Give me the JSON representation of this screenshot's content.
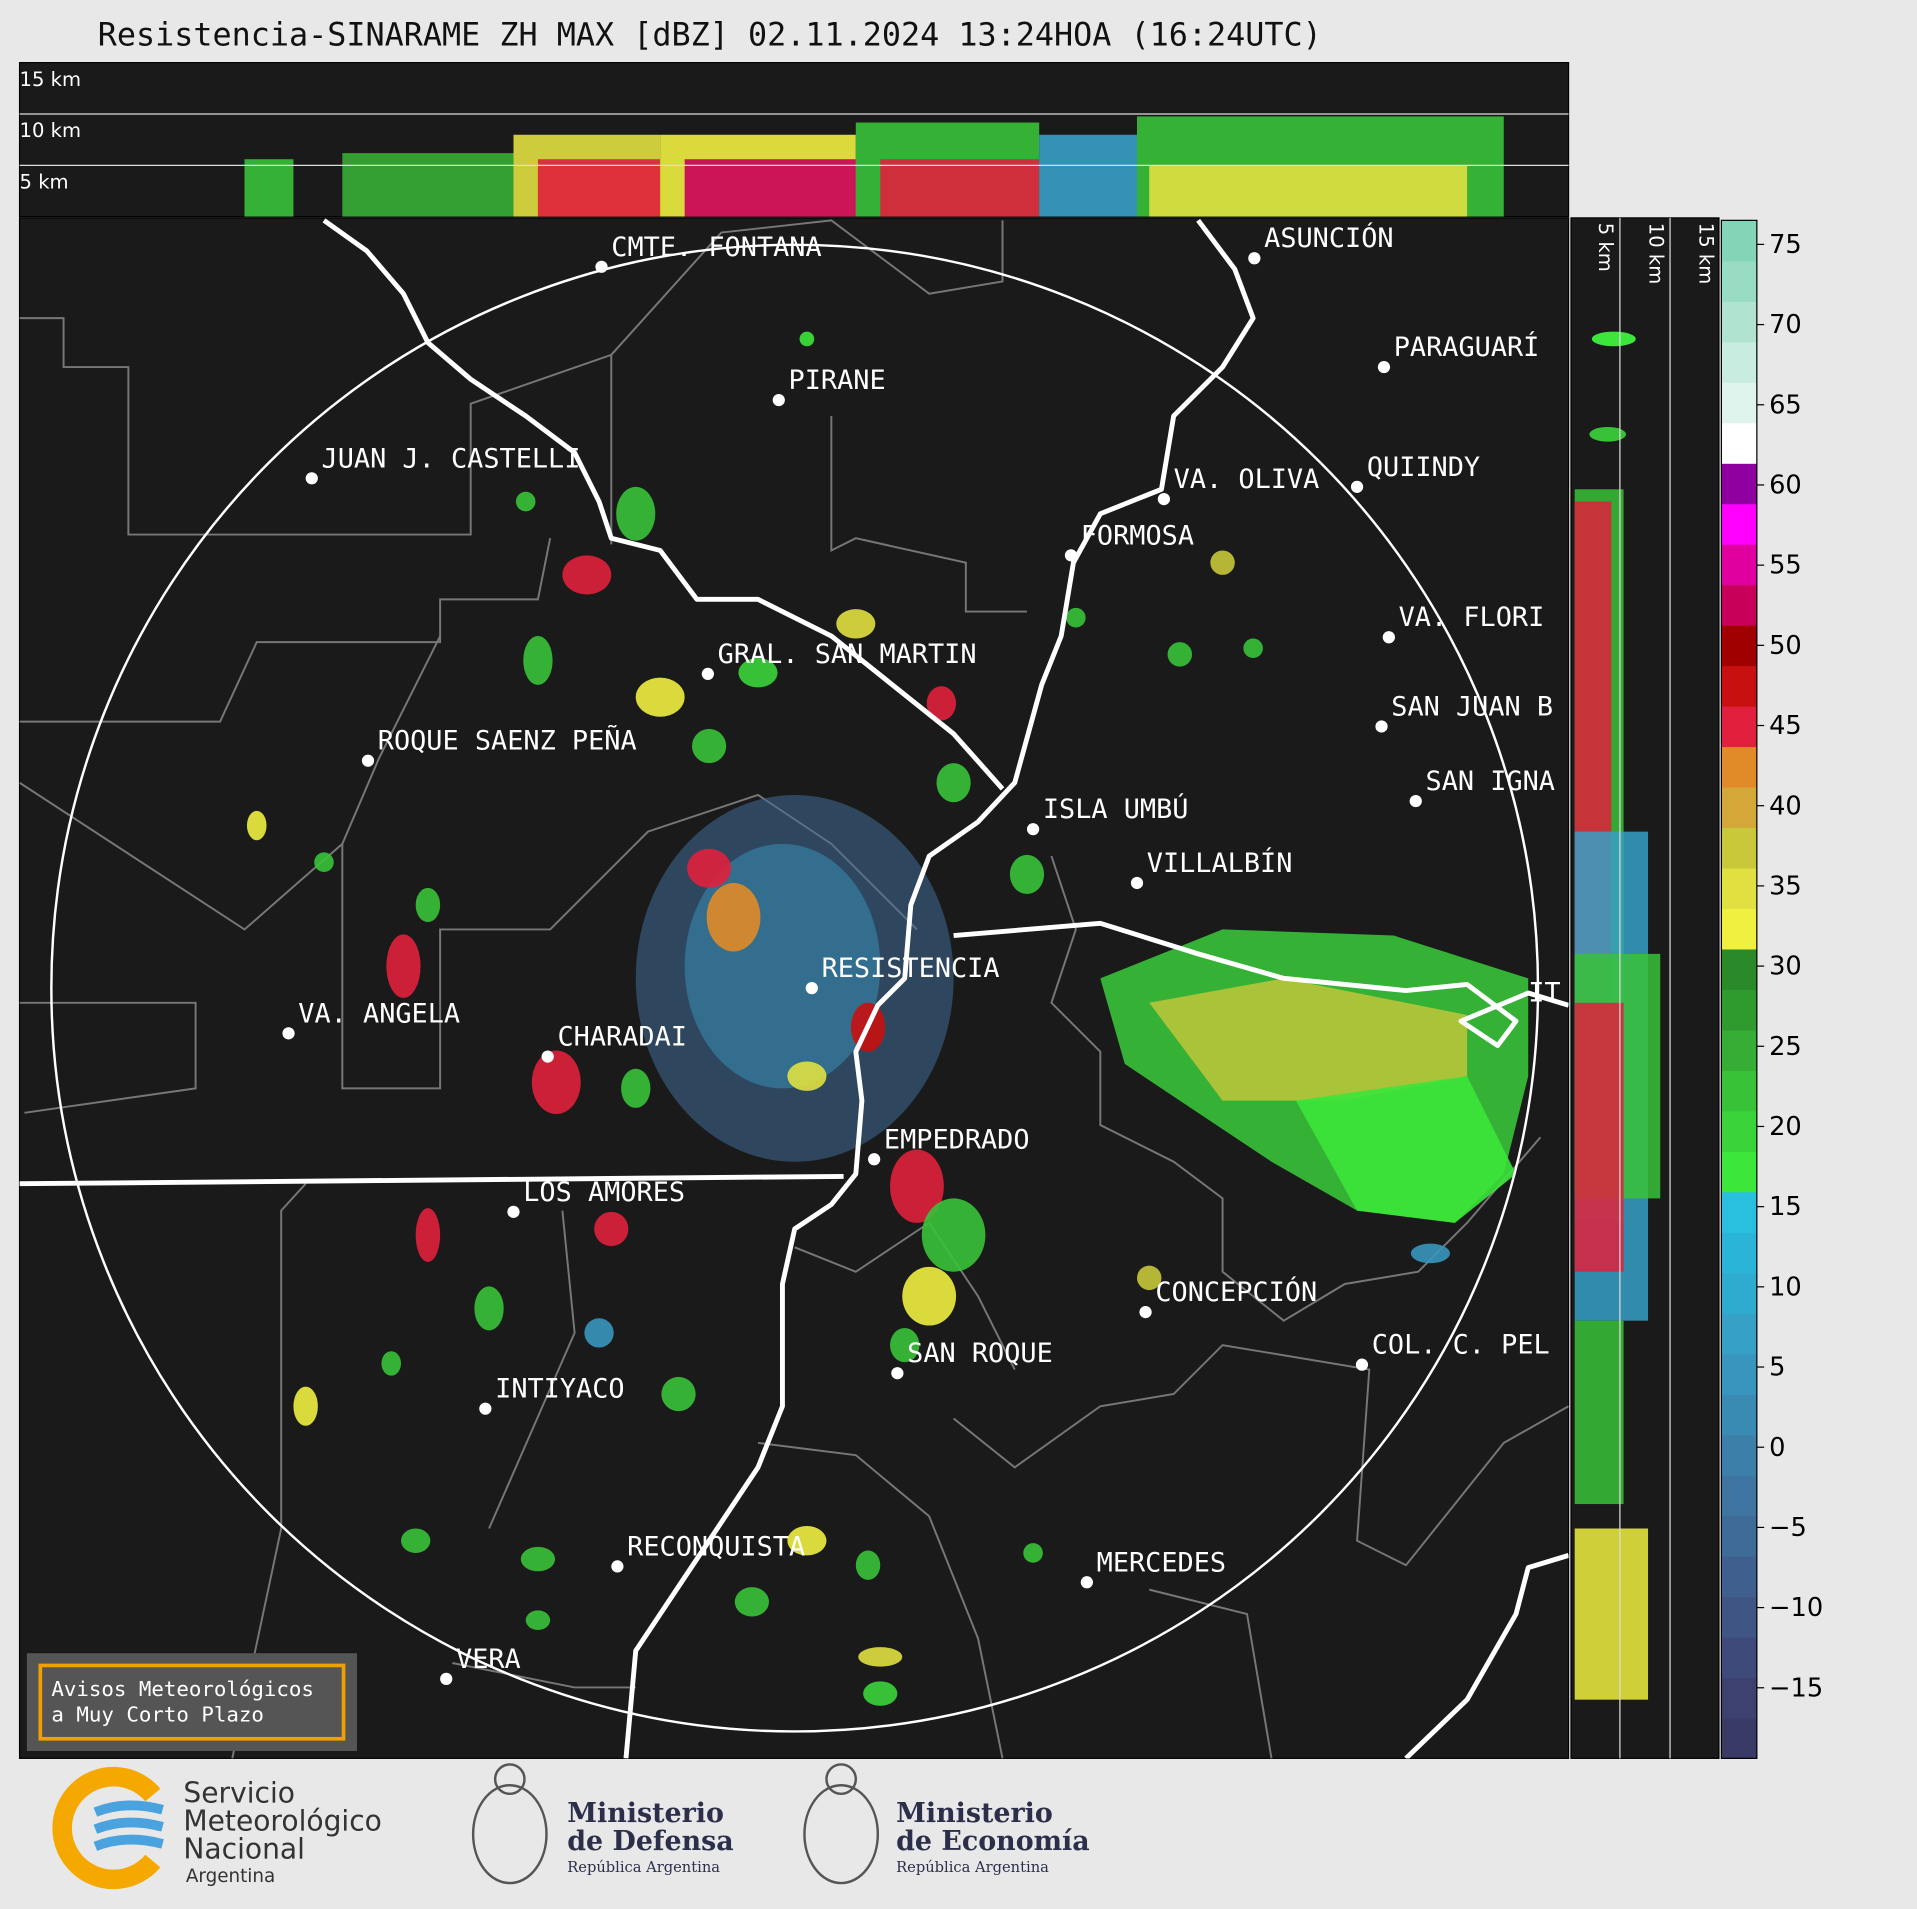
{
  "title": "Resistencia-SINARAME ZH MAX [dBZ] 02.11.2024 13:24HOA (16:24UTC)",
  "profile_top": {
    "labels": [
      "15 km",
      "10 km",
      "5 km"
    ]
  },
  "profile_side": {
    "labels": [
      "5 km",
      "10 km",
      "15 km"
    ]
  },
  "map": {
    "places": [
      "CMTE. FONTANA",
      "PIRANE",
      "JUAN J. CASTELLI",
      "ASUNCIÓN",
      "PARAGUARÍ",
      "VA. OLIVA",
      "QUIINDY",
      "FORMOSA",
      "VA. FLORI",
      "GRAL. SAN MARTIN",
      "SAN JUAN B",
      "ROQUE SAENZ PEÑA",
      "SAN IGNA",
      "ISLA UMBÚ",
      "VILLALBÍN",
      "RESISTENCIA",
      "VA. ANGELA",
      "CHARADAI",
      "IT",
      "EMPEDRADO",
      "LOS AMORES",
      "CONCEPCIÓN",
      "COL. C. PEL",
      "SAN ROQUE",
      "INTIYACO",
      "RECONQUISTA",
      "MERCEDES",
      "VERA"
    ]
  },
  "colorbar": {
    "lim": [
      -19.4,
      76.5
    ],
    "ticks": [
      75,
      70,
      65,
      60,
      55,
      50,
      45,
      40,
      35,
      30,
      25,
      20,
      15,
      10,
      5,
      0,
      {
        "value": -5,
        "label": "−5"
      },
      {
        "value": -10,
        "label": "−10"
      },
      {
        "value": -15,
        "label": "−15"
      }
    ],
    "colors": [
      "#3a3a66",
      "#3c4170",
      "#3e4a7a",
      "#3f5584",
      "#3f608e",
      "#3f6b98",
      "#3e75a0",
      "#3c80aa",
      "#3a8bb4",
      "#3896be",
      "#36a0c6",
      "#2fabd0",
      "#2ab5d8",
      "#29c0e0",
      "#3ce63a",
      "#3ad43a",
      "#38c238",
      "#36ad34",
      "#2f9a2e",
      "#2a8a2a",
      "#f0f040",
      "#e0e040",
      "#c8c83a",
      "#d4a838",
      "#e08a28",
      "#e0203c",
      "#c81010",
      "#a00000",
      "#c8005a",
      "#e000a0",
      "#ff00ff",
      "#9000a0",
      "#ffffff",
      "#e0f4ee",
      "#c8ecdf",
      "#b0e4d0",
      "#98dcc4",
      "#84d4b8"
    ]
  },
  "notice": {
    "lines": [
      "Avisos Meteorológicos",
      "a Muy Corto Plazo"
    ]
  },
  "logos": {
    "smn": {
      "lines": [
        "Servicio",
        "Meteorológico",
        "Nacional"
      ],
      "country": "Argentina"
    },
    "defensa": {
      "lines": [
        "Ministerio",
        "de Defensa"
      ],
      "country": "República Argentina"
    },
    "economia": {
      "lines": [
        "Ministerio",
        "de Economía"
      ],
      "country": "República Argentina"
    }
  }
}
